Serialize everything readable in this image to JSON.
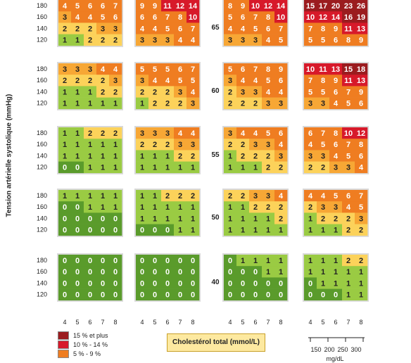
{
  "chart_data": {
    "type": "heatmap",
    "ylabel": "Tension artérielle systolique (mmHg)",
    "xlabel": "Cholestérol total (mmol/L)",
    "x_ticks": [
      "4",
      "5",
      "6",
      "7",
      "8"
    ],
    "y_ticks": [
      "180",
      "160",
      "140",
      "120"
    ],
    "ages": [
      "65",
      "60",
      "55",
      "50",
      "40"
    ],
    "mgdl_ticks": [
      "150",
      "200",
      "250",
      "300"
    ],
    "mgdl_unit": "mg/dL",
    "legend": [
      {
        "label": "15 % et plus",
        "color": "#9b1c1f"
      },
      {
        "label": "10 % - 14 %",
        "color": "#d7192a"
      },
      {
        "label": "5 % - 9 %",
        "color": "#ef7d21"
      }
    ],
    "colors": {
      "0": "#5a9b2b",
      "1": "#9acb43",
      "2": "#fcd25a",
      "3": "#f7a735",
      "4": "#ef7d21",
      "5": "#d7192a",
      "6": "#9b1c1f"
    },
    "panels": [
      [
        [
          [
            "4",
            "5",
            "6",
            "6",
            "7"
          ],
          [
            "3",
            "4",
            "4",
            "5",
            "6"
          ],
          [
            "2",
            "2",
            "2",
            "3",
            "3"
          ],
          [
            "1",
            "1",
            "2",
            "2",
            "2"
          ]
        ],
        [
          [
            "9",
            "9",
            "11",
            "12",
            "14"
          ],
          [
            "6",
            "6",
            "7",
            "8",
            "10"
          ],
          [
            "4",
            "4",
            "5",
            "6",
            "7"
          ],
          [
            "3",
            "3",
            "3",
            "4",
            "4"
          ]
        ],
        [
          [
            "8",
            "9",
            "10",
            "12",
            "14"
          ],
          [
            "5",
            "6",
            "7",
            "8",
            "10"
          ],
          [
            "4",
            "4",
            "5",
            "6",
            "7"
          ],
          [
            "3",
            "3",
            "3",
            "4",
            "5"
          ]
        ],
        [
          [
            "15",
            "17",
            "20",
            "23",
            "26"
          ],
          [
            "10",
            "12",
            "14",
            "16",
            "19"
          ],
          [
            "7",
            "8",
            "9",
            "11",
            "13"
          ],
          [
            "5",
            "5",
            "6",
            "8",
            "9"
          ]
        ]
      ],
      [
        [
          [
            "3",
            "3",
            "3",
            "4",
            "4"
          ],
          [
            "2",
            "2",
            "2",
            "2",
            "3"
          ],
          [
            "1",
            "1",
            "1",
            "2",
            "2"
          ],
          [
            "1",
            "1",
            "1",
            "1",
            "1"
          ]
        ],
        [
          [
            "5",
            "5",
            "5",
            "6",
            "7"
          ],
          [
            "3",
            "4",
            "4",
            "5",
            "5"
          ],
          [
            "2",
            "2",
            "2",
            "3",
            "4"
          ],
          [
            "1",
            "2",
            "2",
            "2",
            "3"
          ]
        ],
        [
          [
            "5",
            "6",
            "7",
            "8",
            "9"
          ],
          [
            "3",
            "4",
            "4",
            "5",
            "6"
          ],
          [
            "2",
            "3",
            "3",
            "4",
            "4"
          ],
          [
            "2",
            "2",
            "2",
            "3",
            "3"
          ]
        ],
        [
          [
            "10",
            "11",
            "13",
            "15",
            "18"
          ],
          [
            "7",
            "8",
            "9",
            "11",
            "13"
          ],
          [
            "5",
            "5",
            "6",
            "7",
            "9"
          ],
          [
            "3",
            "3",
            "4",
            "5",
            "6"
          ]
        ]
      ],
      [
        [
          [
            "1",
            "1",
            "2",
            "2",
            "2"
          ],
          [
            "1",
            "1",
            "1",
            "1",
            "1"
          ],
          [
            "1",
            "1",
            "1",
            "1",
            "1"
          ],
          [
            "0",
            "0",
            "1",
            "1",
            "1"
          ]
        ],
        [
          [
            "3",
            "3",
            "3",
            "4",
            "4"
          ],
          [
            "2",
            "2",
            "2",
            "3",
            "3"
          ],
          [
            "1",
            "1",
            "1",
            "2",
            "2"
          ],
          [
            "1",
            "1",
            "1",
            "1",
            "1"
          ]
        ],
        [
          [
            "3",
            "4",
            "4",
            "5",
            "6"
          ],
          [
            "2",
            "2",
            "3",
            "3",
            "4"
          ],
          [
            "1",
            "2",
            "2",
            "2",
            "3"
          ],
          [
            "1",
            "1",
            "1",
            "2",
            "2"
          ]
        ],
        [
          [
            "6",
            "7",
            "8",
            "10",
            "12"
          ],
          [
            "4",
            "5",
            "6",
            "7",
            "8"
          ],
          [
            "3",
            "3",
            "4",
            "5",
            "6"
          ],
          [
            "2",
            "2",
            "3",
            "3",
            "4"
          ]
        ]
      ],
      [
        [
          [
            "1",
            "1",
            "1",
            "1",
            "1"
          ],
          [
            "0",
            "0",
            "1",
            "1",
            "1"
          ],
          [
            "0",
            "0",
            "0",
            "0",
            "0"
          ],
          [
            "0",
            "0",
            "0",
            "0",
            "0"
          ]
        ],
        [
          [
            "1",
            "1",
            "2",
            "2",
            "2"
          ],
          [
            "1",
            "1",
            "1",
            "1",
            "1"
          ],
          [
            "1",
            "1",
            "1",
            "1",
            "1"
          ],
          [
            "0",
            "0",
            "0",
            "1",
            "1"
          ]
        ],
        [
          [
            "2",
            "2",
            "3",
            "3",
            "4"
          ],
          [
            "1",
            "1",
            "2",
            "2",
            "2"
          ],
          [
            "1",
            "1",
            "1",
            "1",
            "2"
          ],
          [
            "1",
            "1",
            "1",
            "1",
            "1"
          ]
        ],
        [
          [
            "4",
            "4",
            "5",
            "6",
            "7"
          ],
          [
            "2",
            "3",
            "3",
            "4",
            "5"
          ],
          [
            "1",
            "2",
            "2",
            "2",
            "3"
          ],
          [
            "1",
            "1",
            "1",
            "2",
            "2"
          ]
        ]
      ],
      [
        [
          [
            "0",
            "0",
            "0",
            "0",
            "0"
          ],
          [
            "0",
            "0",
            "0",
            "0",
            "0"
          ],
          [
            "0",
            "0",
            "0",
            "0",
            "0"
          ],
          [
            "0",
            "0",
            "0",
            "0",
            "0"
          ]
        ],
        [
          [
            "0",
            "0",
            "0",
            "0",
            "0"
          ],
          [
            "0",
            "0",
            "0",
            "0",
            "0"
          ],
          [
            "0",
            "0",
            "0",
            "0",
            "0"
          ],
          [
            "0",
            "0",
            "0",
            "0",
            "0"
          ]
        ],
        [
          [
            "0",
            "1",
            "1",
            "1",
            "1"
          ],
          [
            "0",
            "0",
            "0",
            "1",
            "1"
          ],
          [
            "0",
            "0",
            "0",
            "0",
            "0"
          ],
          [
            "0",
            "0",
            "0",
            "0",
            "0"
          ]
        ],
        [
          [
            "1",
            "1",
            "1",
            "2",
            "2"
          ],
          [
            "1",
            "1",
            "1",
            "1",
            "1"
          ],
          [
            "0",
            "1",
            "1",
            "1",
            "1"
          ],
          [
            "0",
            "0",
            "0",
            "1",
            "1"
          ]
        ]
      ]
    ]
  }
}
